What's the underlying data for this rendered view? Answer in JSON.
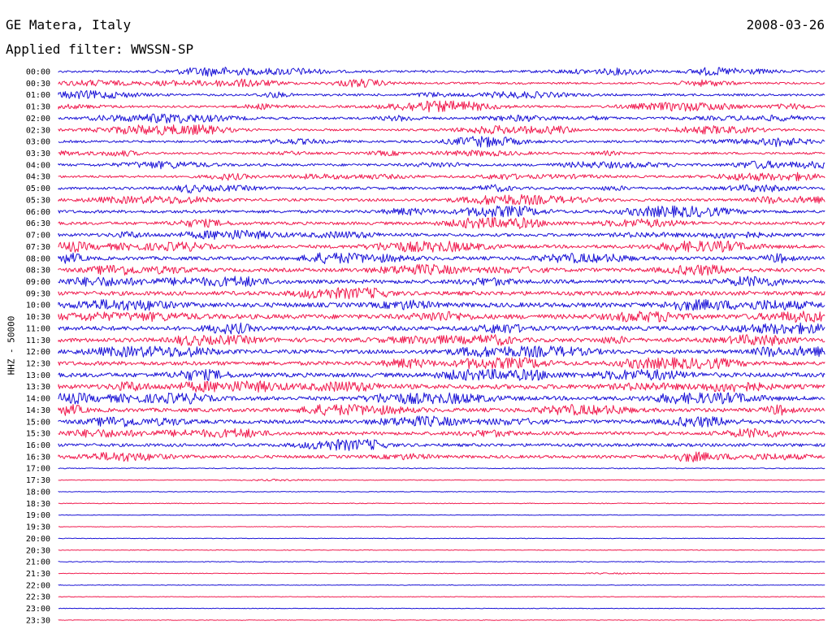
{
  "header": {
    "station": "GE Matera, Italy",
    "date": "2008-03-26",
    "filter_label": "Applied filter: WWSSN-SP"
  },
  "chart_data": {
    "type": "helicorder",
    "ylabel": "HHZ - 50000",
    "row_labels": [
      "00:00",
      "00:30",
      "01:00",
      "01:30",
      "02:00",
      "02:30",
      "03:00",
      "03:30",
      "04:00",
      "04:30",
      "05:00",
      "05:30",
      "06:00",
      "06:30",
      "07:00",
      "07:30",
      "08:00",
      "08:30",
      "09:00",
      "09:30",
      "10:00",
      "10:30",
      "11:00",
      "11:30",
      "12:00",
      "12:30",
      "13:00",
      "13:30",
      "14:00",
      "14:30",
      "15:00",
      "15:30",
      "16:00",
      "16:30",
      "17:00",
      "17:30",
      "18:00",
      "18:30",
      "19:00",
      "19:30",
      "20:00",
      "20:30",
      "21:00",
      "21:30",
      "22:00",
      "22:30",
      "23:00",
      "23:30"
    ],
    "trace_colors": [
      "#1a12d6",
      "#f01a4e"
    ],
    "activity_profile": [
      1.3,
      1.2,
      1.3,
      1.3,
      1.4,
      1.3,
      1.4,
      1.3,
      1.5,
      1.4,
      1.6,
      1.6,
      1.8,
      1.8,
      1.9,
      2.0,
      2.1,
      2.2,
      2.3,
      2.5,
      2.8,
      2.8,
      2.6,
      2.5,
      2.3,
      2.4,
      2.6,
      2.8,
      2.4,
      2.3,
      2.2,
      2.0,
      1.9,
      1.8,
      0.55,
      0.4,
      0.4,
      0.4,
      0.35,
      0.35,
      0.35,
      0.35,
      0.45,
      0.35,
      0.35,
      0.35,
      0.35,
      0.35
    ],
    "colors": {
      "text": "#000000",
      "background": "#ffffff"
    }
  }
}
